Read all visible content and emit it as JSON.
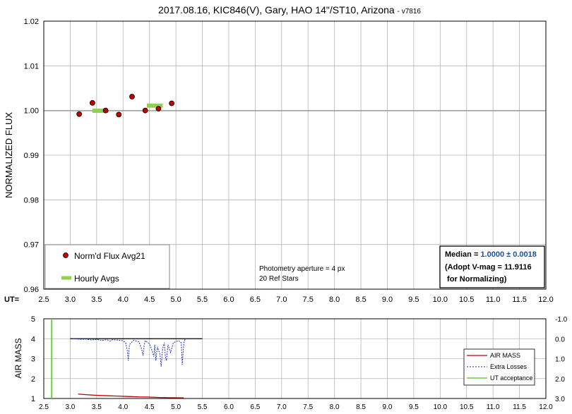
{
  "chart_data": [
    {
      "type": "scatter",
      "title": "2017.08.16, KIC846(V), Gary, HAO 14\"/ST10, Arizona",
      "title_suffix": "- v7816",
      "ylabel": "NORMALIZED FLUX",
      "xaxis_prefix": "UT=",
      "xlim": [
        2.5,
        12.0
      ],
      "ylim": [
        0.96,
        1.02
      ],
      "x_ticks": [
        "2.5",
        "3.0",
        "3.5",
        "4.0",
        "4.5",
        "5.0",
        "5.5",
        "6.0",
        "6.5",
        "7.0",
        "7.5",
        "8.0",
        "8.5",
        "9.0",
        "9.5",
        "10.0",
        "10.5",
        "11.0",
        "11.5",
        "12.0"
      ],
      "y_ticks": [
        "0.96",
        "0.97",
        "0.98",
        "0.99",
        "1.00",
        "1.01",
        "1.02"
      ],
      "reference_line": 1.0,
      "series": [
        {
          "name": "Norm'd Flux Avg21",
          "color": "#c00000",
          "x": [
            3.17,
            3.42,
            3.67,
            3.92,
            4.17,
            4.42,
            4.67,
            4.92
          ],
          "y": [
            0.9992,
            1.0017,
            1.0,
            0.9991,
            1.0031,
            1.0,
            1.0004,
            1.0016
          ]
        },
        {
          "name": "Hourly Avgs",
          "color": "#92d050",
          "segments": [
            {
              "x0": 3.42,
              "x1": 3.72,
              "y": 0.99995
            },
            {
              "x0": 4.45,
              "x1": 4.75,
              "y": 1.0011
            }
          ]
        }
      ],
      "annotations": [
        "Photometry aperture = 4 px",
        "20 Ref Stars"
      ],
      "median_box": {
        "label": "Median = ",
        "value": "1.0000 ± 0.0018",
        "line2": "(Adopt V-mag = 11.9116",
        "line3": " for Normalizing)"
      },
      "legend_position": "bottom-left",
      "grid": true
    },
    {
      "type": "line",
      "ylabel": "AIR MASS",
      "xlim": [
        2.5,
        12.0
      ],
      "ylim": [
        1,
        5
      ],
      "y2lim": [
        3.0,
        -1.0
      ],
      "x_ticks": [
        "2.5",
        "3.0",
        "3.5",
        "4.0",
        "4.5",
        "5.0",
        "5.5",
        "6.0",
        "6.5",
        "7.0",
        "7.5",
        "8.0",
        "8.5",
        "9.0",
        "9.5",
        "10.0",
        "10.5",
        "11.0",
        "11.5",
        "12.0"
      ],
      "y_ticks": [
        "1",
        "2",
        "3",
        "4",
        "5"
      ],
      "y2_ticks": [
        "3.0",
        "2.0",
        "1.0",
        "0.0",
        "-1.0"
      ],
      "series": [
        {
          "name": "AIR MASS",
          "color": "#c00000",
          "x": [
            3.15,
            3.3,
            3.5,
            3.7,
            3.9,
            4.1,
            4.3,
            4.5,
            4.7,
            4.9,
            5.15
          ],
          "y": [
            1.22,
            1.19,
            1.16,
            1.14,
            1.12,
            1.1,
            1.08,
            1.07,
            1.05,
            1.04,
            1.03
          ]
        },
        {
          "name": "Extra Losses",
          "color": "#1f2dbd",
          "axis": "right",
          "x": [
            3.05,
            3.2,
            3.3,
            3.4,
            3.5,
            3.6,
            3.7,
            3.75,
            3.8,
            3.9,
            4.0,
            4.05,
            4.08,
            4.1,
            4.12,
            4.2,
            4.3,
            4.35,
            4.38,
            4.4,
            4.42,
            4.5,
            4.55,
            4.58,
            4.6,
            4.62,
            4.65,
            4.7,
            4.72,
            4.75,
            4.78,
            4.8,
            4.82,
            4.85,
            4.9,
            4.95,
            5.0,
            5.05,
            5.1,
            5.12,
            5.15,
            5.17,
            5.2
          ],
          "y": [
            0.0,
            0.03,
            0.02,
            0.06,
            0.04,
            0.08,
            0.05,
            0.12,
            0.05,
            0.07,
            0.1,
            0.2,
            0.6,
            1.1,
            0.3,
            0.08,
            0.15,
            0.5,
            0.85,
            0.3,
            0.1,
            0.25,
            0.6,
            0.9,
            0.3,
            1.1,
            0.4,
            0.8,
            1.4,
            0.5,
            0.2,
            0.9,
            1.1,
            0.3,
            0.7,
            0.2,
            0.15,
            0.1,
            0.2,
            1.3,
            0.2,
            0.05,
            0.0
          ]
        },
        {
          "name": "UT acceptance",
          "color": "#6fce3f",
          "x_value": 2.65
        }
      ],
      "reference_line_right": 0.0,
      "reference_line_range": [
        3.0,
        5.5
      ],
      "legend_position": "bottom-right",
      "grid": true
    }
  ]
}
